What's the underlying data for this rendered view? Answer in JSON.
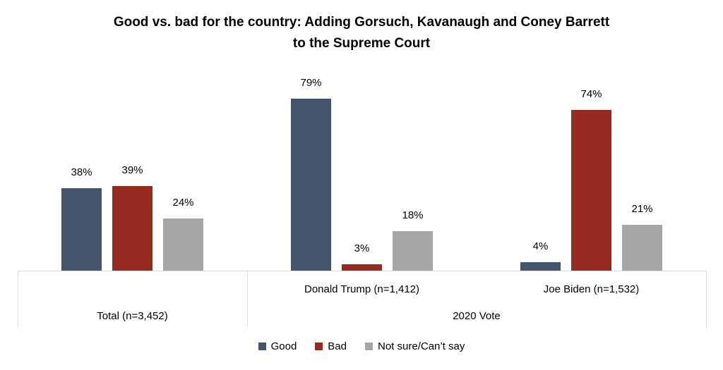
{
  "title": {
    "line1": "Good vs. bad for the country: Adding Gorsuch, Kavanaugh and Coney Barrett",
    "line2": "to the Supreme Court"
  },
  "chart_data": {
    "type": "bar",
    "title": "Good vs. bad for the country: Adding Gorsuch, Kavanaugh and Coney Barrett to the Supreme Court",
    "categories": [
      "Total (n=3,452)",
      "Donald Trump (n=1,412)",
      "Joe Biden (n=1,532)"
    ],
    "category_axis_levels": {
      "level1": [
        "",
        "Donald Trump (n=1,412)",
        "Joe Biden (n=1,532)"
      ],
      "level2": [
        {
          "label": "Total (n=3,452)",
          "groups": [
            0
          ]
        },
        {
          "label": "2020 Vote",
          "groups": [
            1,
            2
          ]
        }
      ]
    },
    "series": [
      {
        "name": "Good",
        "color": "#44546A",
        "values": [
          38,
          79,
          4
        ]
      },
      {
        "name": "Bad",
        "color": "#962B22",
        "values": [
          39,
          3,
          74
        ]
      },
      {
        "name": "Not sure/Can’t say",
        "color": "#A6A6A6",
        "values": [
          24,
          18,
          21
        ]
      }
    ],
    "value_suffix": "%",
    "ylim": [
      0,
      100
    ],
    "grid": false,
    "y_axis_visible": false,
    "data_labels": "outside-end",
    "legend_position": "bottom"
  },
  "axis": {
    "line_color": "#D9D9D9"
  }
}
